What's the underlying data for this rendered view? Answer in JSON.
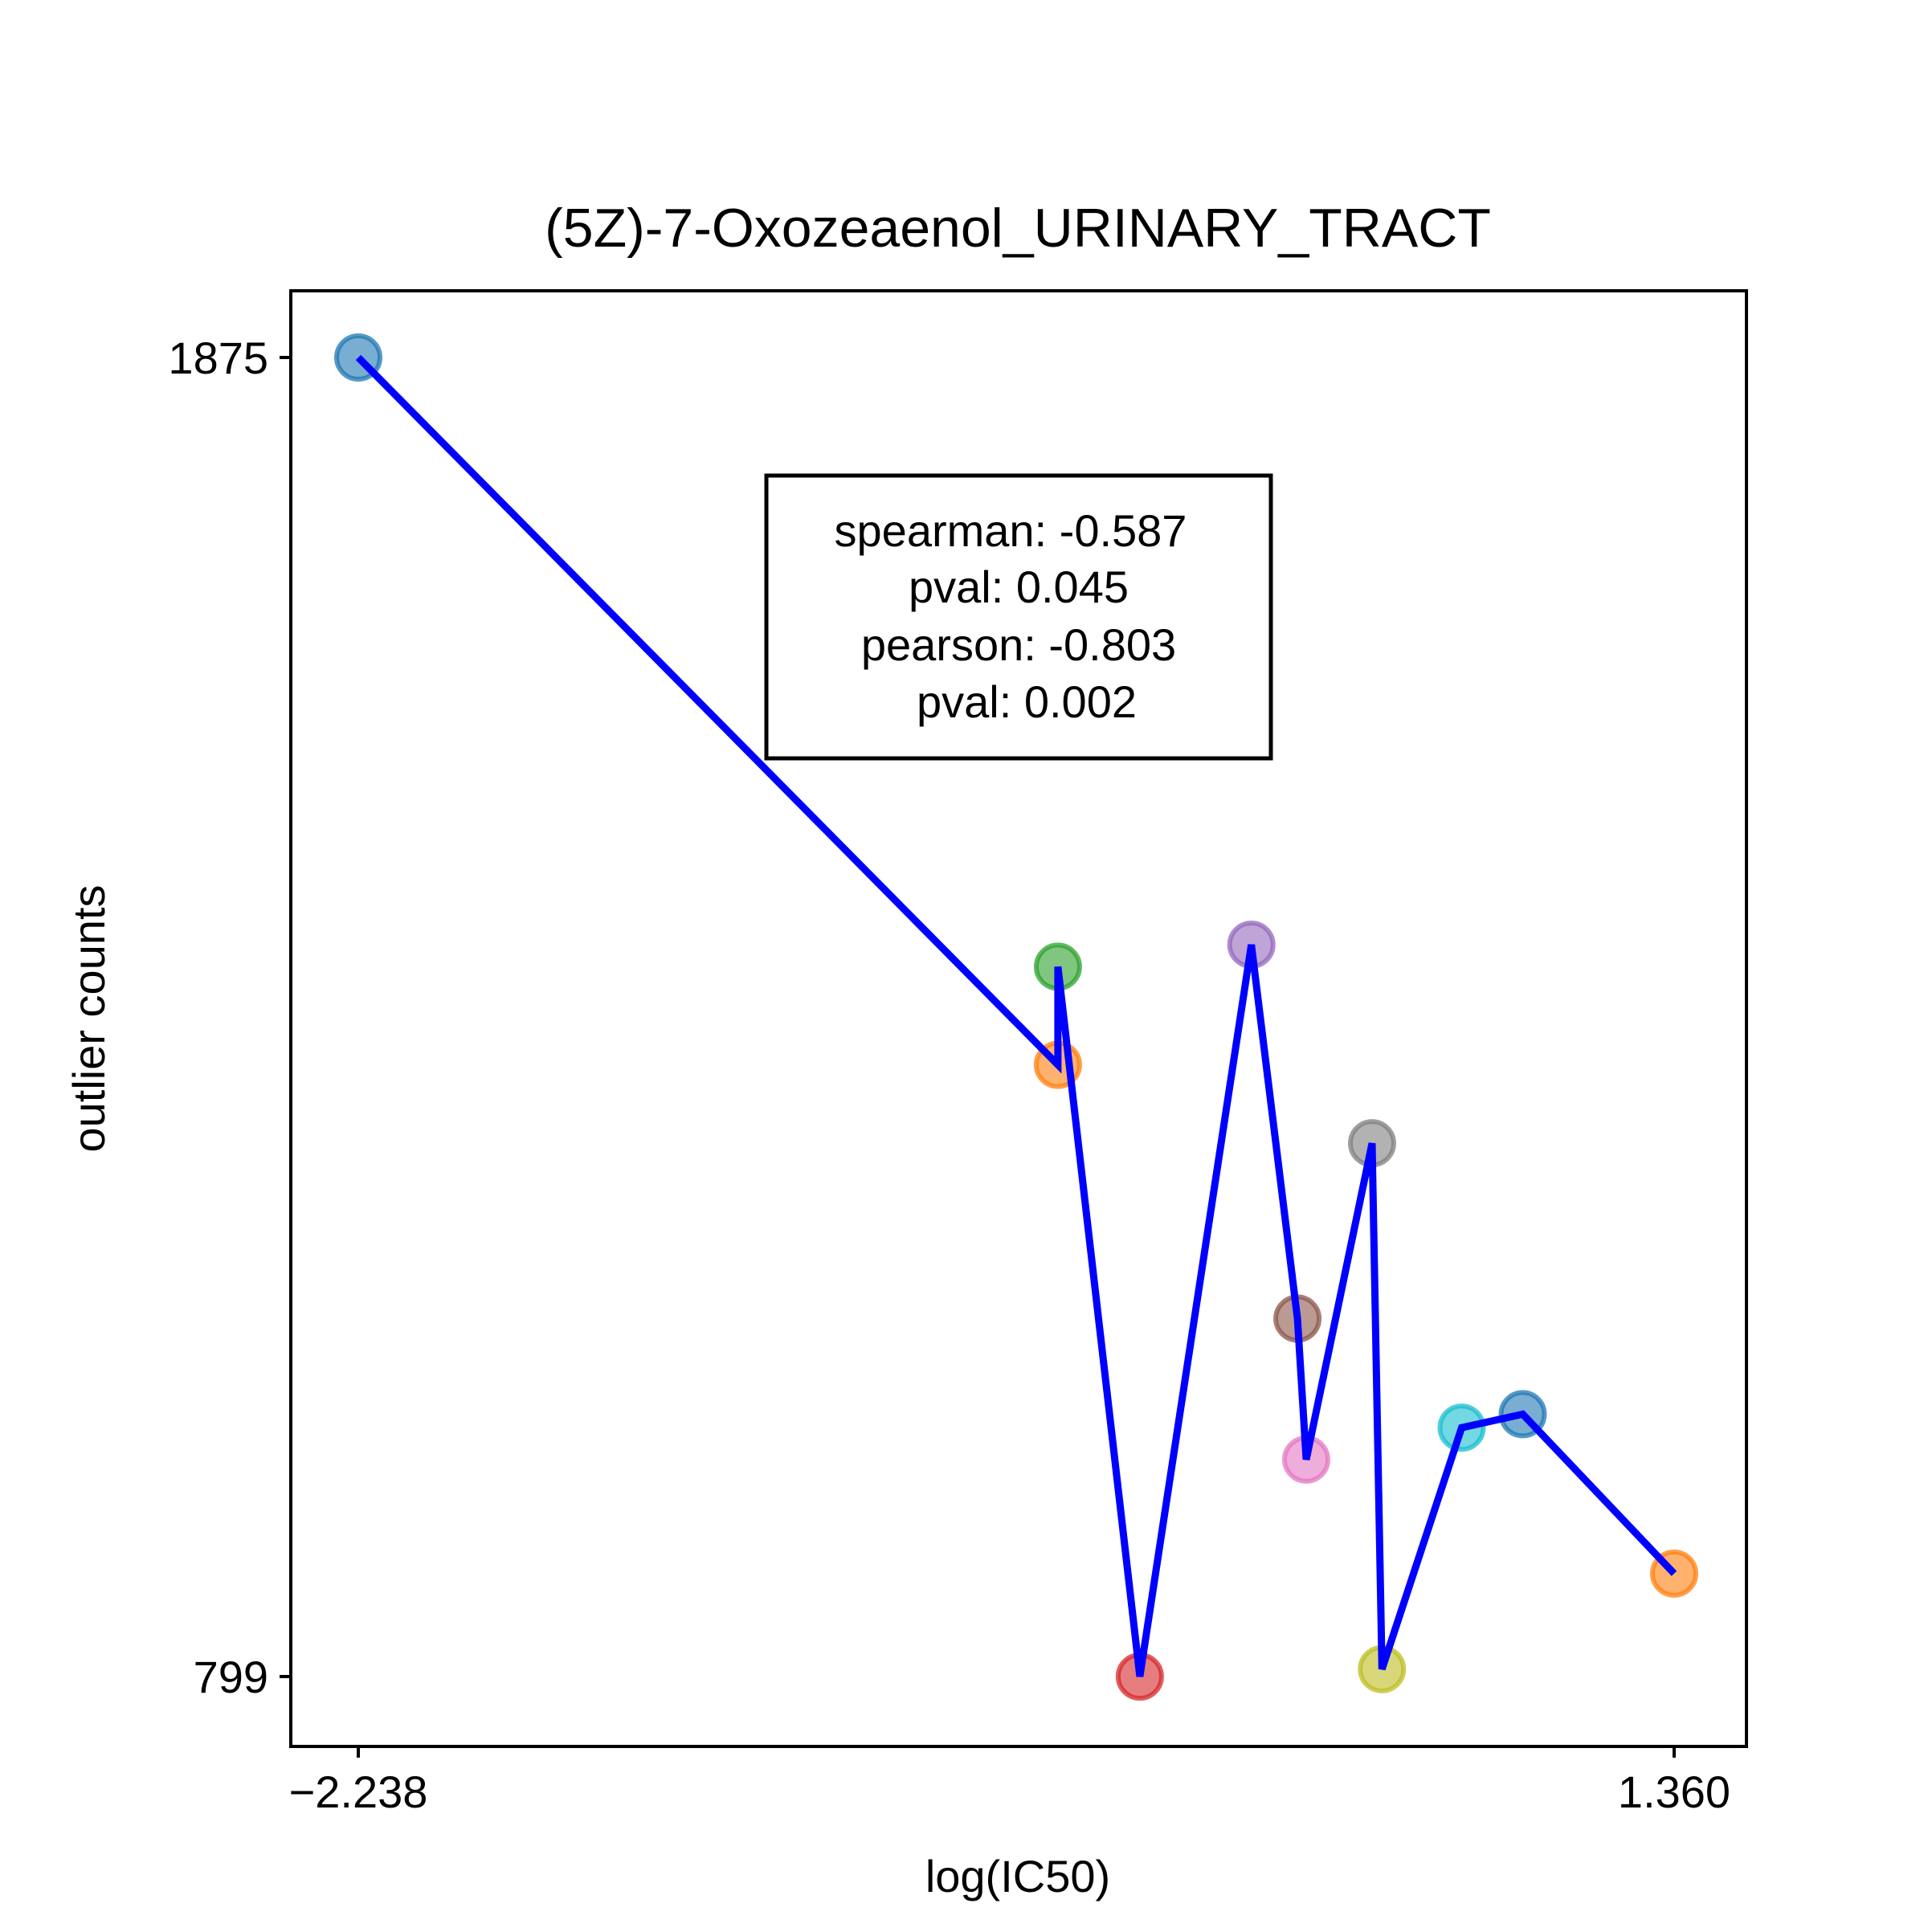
{
  "chart_data": {
    "type": "scatter",
    "title": "(5Z)-7-Oxozeaenol_URINARY_TRACT",
    "xlabel": "log(IC50)",
    "ylabel": "outlier counts",
    "xlim": [
      -2.238,
      1.36
    ],
    "ylim": [
      799,
      1875
    ],
    "x_ticks": [
      {
        "value": -2.238,
        "label": "−2.238"
      },
      {
        "value": 1.36,
        "label": "1.360"
      }
    ],
    "y_ticks": [
      {
        "value": 1875,
        "label": "1875"
      },
      {
        "value": 799,
        "label": "799"
      }
    ],
    "grid": false,
    "legend": "none",
    "points": [
      {
        "x": -2.238,
        "y": 1875,
        "color": "#1f77b4"
      },
      {
        "x": -0.325,
        "y": 1298,
        "color": "#ff7f0e"
      },
      {
        "x": -0.325,
        "y": 1378,
        "color": "#2ca02c"
      },
      {
        "x": -0.101,
        "y": 799,
        "color": "#d62728"
      },
      {
        "x": 0.204,
        "y": 1396,
        "color": "#9467bd"
      },
      {
        "x": 0.33,
        "y": 1091,
        "color": "#8c564b"
      },
      {
        "x": 0.354,
        "y": 976,
        "color": "#e377c2"
      },
      {
        "x": 0.534,
        "y": 1234,
        "color": "#7f7f7f"
      },
      {
        "x": 0.561,
        "y": 805,
        "color": "#bcbd22"
      },
      {
        "x": 0.779,
        "y": 1002,
        "color": "#17becf"
      },
      {
        "x": 0.946,
        "y": 1013,
        "color": "#1f77b4"
      },
      {
        "x": 1.36,
        "y": 883,
        "color": "#ff7f0e"
      }
    ],
    "line_color": "#0000ff",
    "stats_lines": [
      "spearman: -0.587",
      "pval: 0.045",
      "pearson: -0.803",
      "pval: 0.002"
    ]
  }
}
